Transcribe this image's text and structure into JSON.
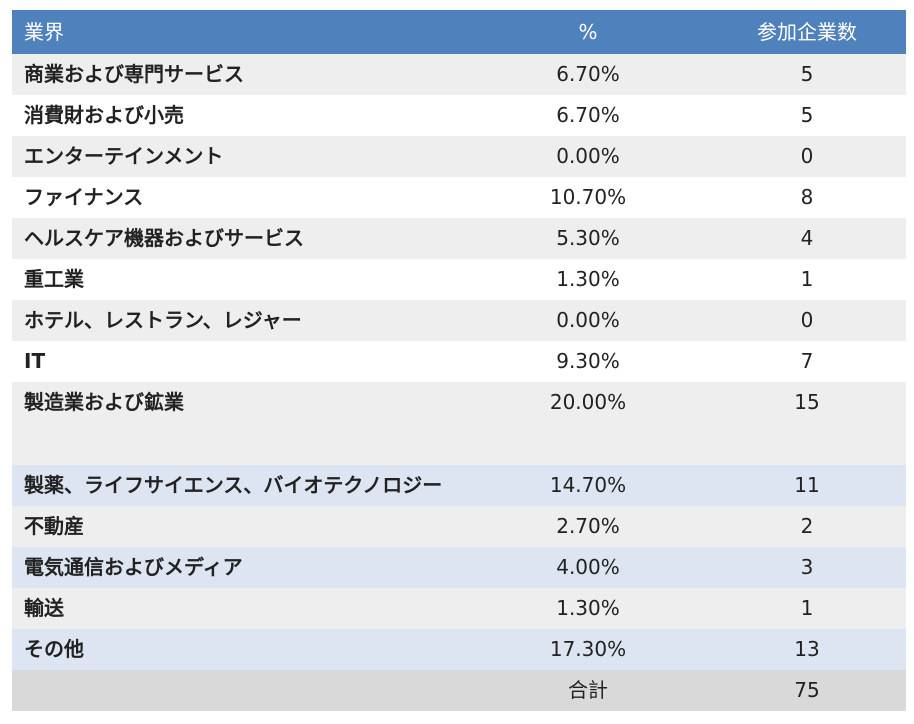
{
  "header": {
    "industry": "業界",
    "percent": "%",
    "count": "参加企業数"
  },
  "rows": [
    {
      "industry": "商業および専門サービス",
      "percent": "6.70%",
      "count": "5"
    },
    {
      "industry": "消費財および小売",
      "percent": "6.70%",
      "count": "5"
    },
    {
      "industry": "エンターテインメント",
      "percent": "0.00%",
      "count": "0"
    },
    {
      "industry": "ファイナンス",
      "percent": "10.70%",
      "count": "8"
    },
    {
      "industry": "ヘルスケア機器およびサービス",
      "percent": "5.30%",
      "count": "4"
    },
    {
      "industry": "重工業",
      "percent": "1.30%",
      "count": "1"
    },
    {
      "industry": "ホテル、レストラン、レジャー",
      "percent": "0.00%",
      "count": "0"
    },
    {
      "industry": "IT",
      "percent": "9.30%",
      "count": "7"
    },
    {
      "industry": "製造業および鉱業",
      "percent": "20.00%",
      "count": "15"
    },
    {
      "industry": "製薬、ライフサイエンス、バイオテクノロジー",
      "percent": "14.70%",
      "count": "11"
    },
    {
      "industry": "不動産",
      "percent": "2.70%",
      "count": "2"
    },
    {
      "industry": "電気通信およびメディア",
      "percent": "4.00%",
      "count": "3"
    },
    {
      "industry": "輸送",
      "percent": "1.30%",
      "count": "1"
    },
    {
      "industry": "その他",
      "percent": "17.30%",
      "count": "13"
    }
  ],
  "footer": {
    "label": "合計",
    "total": "75"
  },
  "colors": {
    "header_bg": "#4f81bd",
    "row_gray": "#eeeeee",
    "row_white": "#ffffff",
    "row_blue": "#dce5f1",
    "footer_bg": "#d9d9d9"
  }
}
